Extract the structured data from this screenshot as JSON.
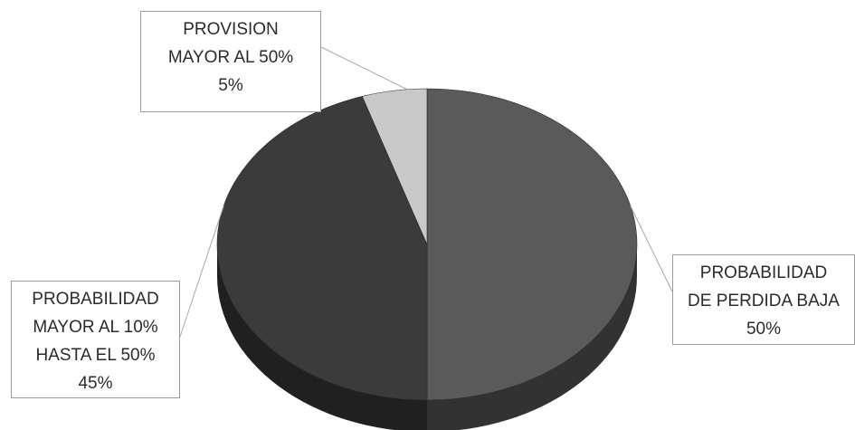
{
  "chart_data": {
    "type": "pie",
    "style": "3d",
    "legend": "none",
    "slices": [
      {
        "label_lines": [
          "PROBABILIDAD",
          "DE PERDIDA BAJA"
        ],
        "percent_label": "50%",
        "value": 50,
        "color": "#5a5a5a"
      },
      {
        "label_lines": [
          "PROBABILIDAD",
          "MAYOR AL 10%",
          "HASTA EL 50%"
        ],
        "percent_label": "45%",
        "value": 45,
        "color": "#3b3b3b"
      },
      {
        "label_lines": [
          "PROVISION",
          "MAYOR AL 50%"
        ],
        "percent_label": "5%",
        "value": 5,
        "color": "#c9c9c9"
      }
    ]
  }
}
